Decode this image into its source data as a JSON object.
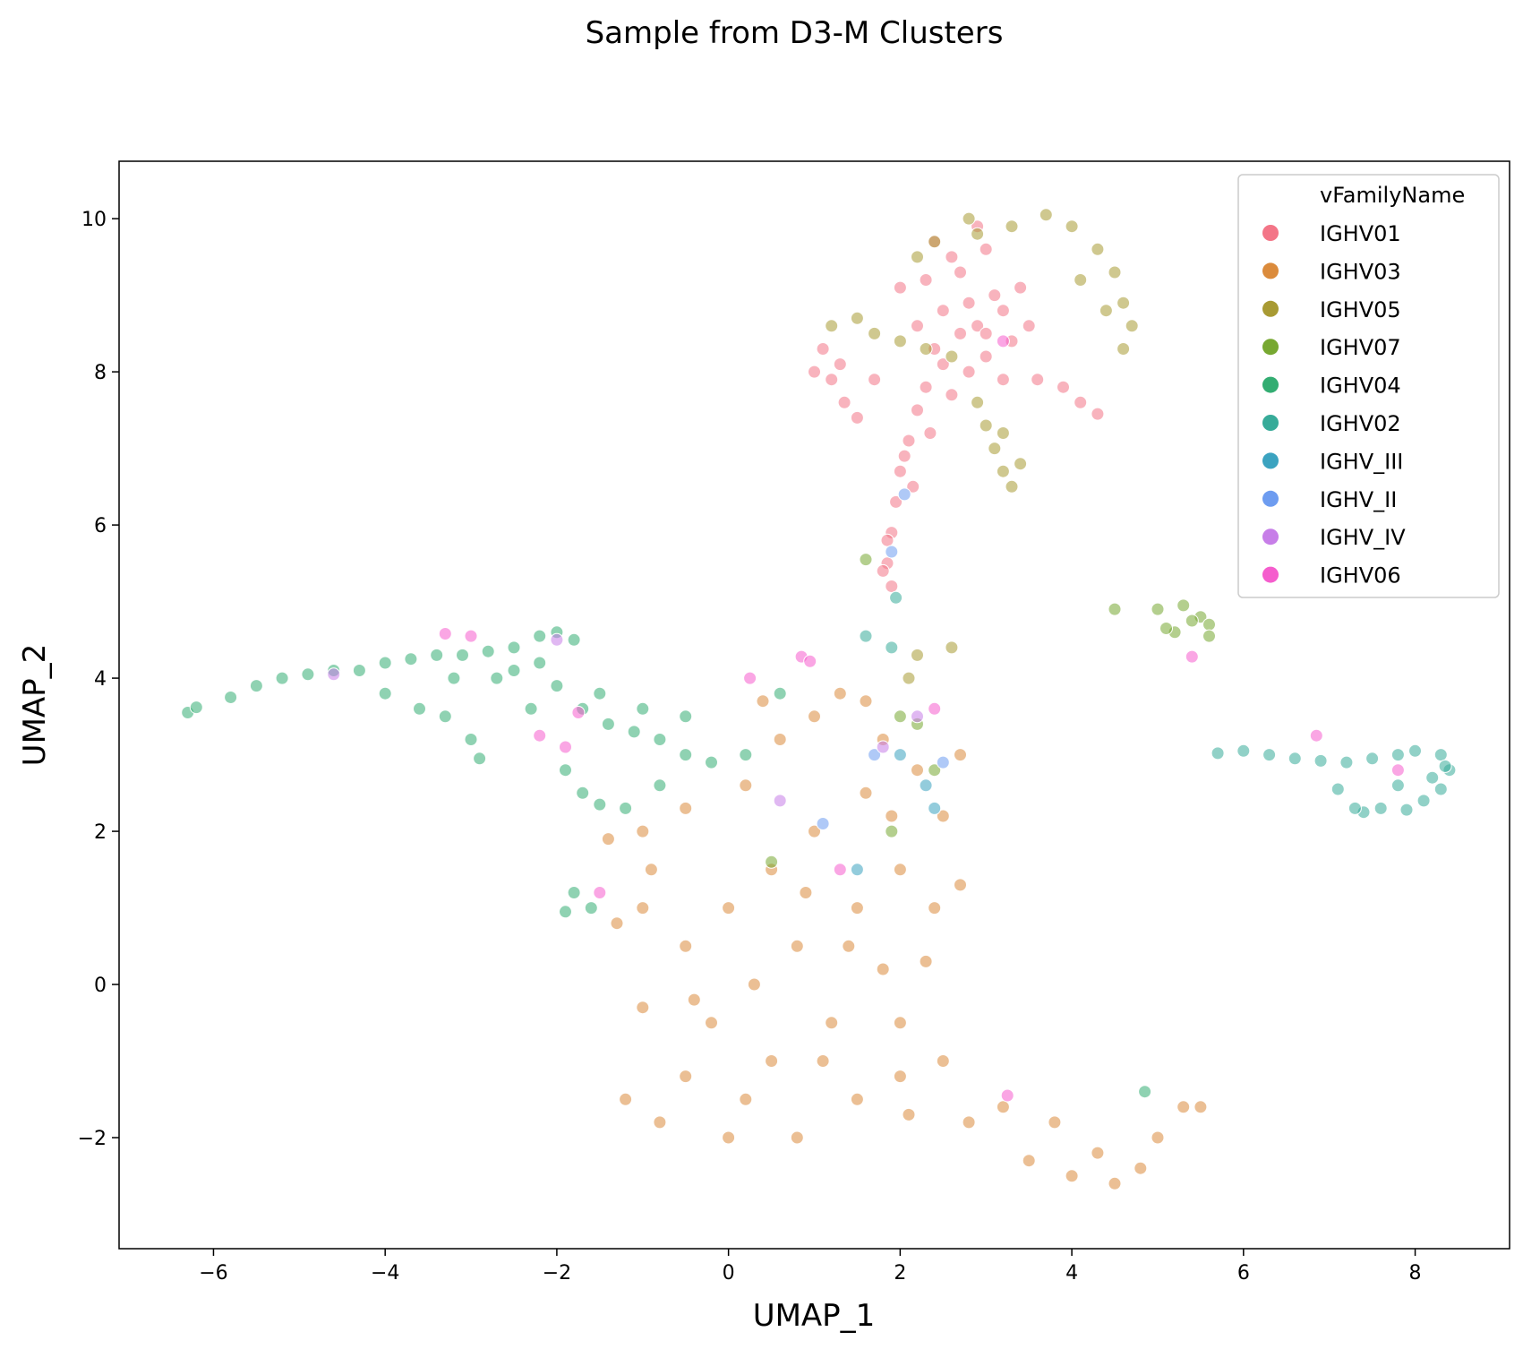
{
  "chart_data": {
    "type": "scatter",
    "title": "Sample from D3-M Clusters",
    "xlabel": "UMAP_1",
    "ylabel": "UMAP_2",
    "xlim": [
      -7.1,
      9.1
    ],
    "ylim": [
      -3.45,
      10.75
    ],
    "xticks": [
      -6,
      -4,
      -2,
      0,
      2,
      4,
      6,
      8
    ],
    "yticks": [
      -2,
      0,
      2,
      4,
      6,
      8,
      10
    ],
    "grid": false,
    "legend": {
      "title": "vFamilyName",
      "position": "top-right"
    },
    "marker_alpha": 0.55,
    "series": [
      {
        "name": "IGHV01",
        "color": "#f37587",
        "points": [
          [
            2.9,
            8.6
          ],
          [
            3.1,
            9.0
          ],
          [
            2.7,
            9.3
          ],
          [
            3.3,
            8.4
          ],
          [
            2.5,
            8.8
          ],
          [
            3.0,
            8.2
          ],
          [
            3.4,
            9.1
          ],
          [
            2.8,
            8.0
          ],
          [
            3.2,
            7.9
          ],
          [
            3.6,
            7.9
          ],
          [
            3.9,
            7.8
          ],
          [
            4.1,
            7.6
          ],
          [
            4.3,
            7.45
          ],
          [
            3.0,
            9.6
          ],
          [
            2.6,
            9.5
          ],
          [
            2.3,
            9.2
          ],
          [
            2.2,
            8.6
          ],
          [
            2.5,
            8.1
          ],
          [
            2.3,
            7.8
          ],
          [
            2.2,
            7.5
          ],
          [
            2.1,
            7.1
          ],
          [
            2.0,
            6.7
          ],
          [
            1.95,
            6.3
          ],
          [
            1.9,
            5.9
          ],
          [
            1.85,
            5.5
          ],
          [
            1.9,
            5.2
          ],
          [
            1.8,
            5.4
          ],
          [
            2.05,
            6.9
          ],
          [
            2.4,
            8.3
          ],
          [
            2.6,
            7.7
          ],
          [
            1.1,
            8.3
          ],
          [
            1.2,
            7.9
          ],
          [
            1.35,
            7.6
          ],
          [
            1.5,
            7.4
          ],
          [
            1.3,
            8.1
          ],
          [
            1.7,
            7.9
          ],
          [
            3.5,
            8.6
          ],
          [
            2.9,
            9.9
          ],
          [
            2.0,
            9.1
          ],
          [
            1.85,
            5.8
          ],
          [
            2.35,
            7.2
          ],
          [
            2.15,
            6.5
          ],
          [
            2.8,
            8.9
          ],
          [
            3.2,
            8.8
          ],
          [
            2.4,
            9.7
          ],
          [
            1.0,
            8.0
          ],
          [
            2.7,
            8.5
          ],
          [
            3.0,
            8.5
          ]
        ]
      },
      {
        "name": "IGHV03",
        "color": "#db8b3c",
        "points": [
          [
            0.5,
            1.5
          ],
          [
            1.0,
            2.0
          ],
          [
            1.5,
            1.0
          ],
          [
            2.0,
            1.5
          ],
          [
            0.8,
            0.5
          ],
          [
            1.2,
            -0.5
          ],
          [
            0.5,
            -1.0
          ],
          [
            -0.5,
            -1.2
          ],
          [
            -1.2,
            -1.5
          ],
          [
            0.0,
            -2.0
          ],
          [
            1.5,
            -1.5
          ],
          [
            2.0,
            -0.5
          ],
          [
            2.5,
            -1.0
          ],
          [
            2.8,
            -1.8
          ],
          [
            3.2,
            -1.6
          ],
          [
            3.8,
            -1.8
          ],
          [
            4.0,
            -2.5
          ],
          [
            4.5,
            -2.6
          ],
          [
            5.0,
            -2.0
          ],
          [
            5.3,
            -1.6
          ],
          [
            -0.5,
            0.5
          ],
          [
            -1.0,
            1.0
          ],
          [
            -1.3,
            0.8
          ],
          [
            -1.0,
            2.0
          ],
          [
            -0.5,
            2.3
          ],
          [
            0.2,
            2.6
          ],
          [
            0.6,
            3.2
          ],
          [
            1.0,
            3.5
          ],
          [
            1.3,
            3.8
          ],
          [
            1.8,
            3.2
          ],
          [
            2.2,
            2.8
          ],
          [
            2.5,
            2.2
          ],
          [
            2.4,
            1.0
          ],
          [
            2.7,
            1.3
          ],
          [
            1.8,
            0.2
          ],
          [
            0.3,
            0.0
          ],
          [
            -0.2,
            -0.5
          ],
          [
            -1.0,
            -0.3
          ],
          [
            0.8,
            -2.0
          ],
          [
            1.6,
            2.5
          ],
          [
            2.3,
            0.3
          ],
          [
            0.0,
            1.0
          ],
          [
            1.1,
            -1.0
          ],
          [
            2.1,
            -1.7
          ],
          [
            -0.8,
            -1.8
          ],
          [
            -1.4,
            1.9
          ],
          [
            -0.9,
            1.5
          ],
          [
            0.4,
            3.7
          ],
          [
            1.6,
            3.7
          ],
          [
            2.7,
            3.0
          ],
          [
            4.3,
            -2.2
          ],
          [
            4.8,
            -2.4
          ],
          [
            3.5,
            -2.3
          ],
          [
            5.5,
            -1.6
          ],
          [
            0.2,
            -1.5
          ],
          [
            1.4,
            0.5
          ],
          [
            0.9,
            1.2
          ],
          [
            2.0,
            -1.2
          ],
          [
            -0.4,
            -0.2
          ],
          [
            1.9,
            2.2
          ]
        ]
      },
      {
        "name": "IGHV05",
        "color": "#a89a33",
        "points": [
          [
            2.9,
            9.8
          ],
          [
            3.3,
            9.9
          ],
          [
            3.7,
            10.05
          ],
          [
            4.0,
            9.9
          ],
          [
            4.3,
            9.6
          ],
          [
            4.5,
            9.3
          ],
          [
            4.6,
            8.9
          ],
          [
            4.7,
            8.6
          ],
          [
            4.6,
            8.3
          ],
          [
            4.4,
            8.8
          ],
          [
            2.4,
            9.7
          ],
          [
            2.2,
            9.5
          ],
          [
            1.2,
            8.6
          ],
          [
            1.5,
            8.7
          ],
          [
            1.7,
            8.5
          ],
          [
            2.0,
            8.4
          ],
          [
            2.3,
            8.3
          ],
          [
            2.6,
            8.2
          ],
          [
            2.9,
            7.6
          ],
          [
            3.0,
            7.3
          ],
          [
            3.1,
            7.0
          ],
          [
            3.2,
            6.7
          ],
          [
            3.3,
            6.5
          ],
          [
            3.4,
            6.8
          ],
          [
            3.2,
            7.2
          ],
          [
            2.8,
            10.0
          ],
          [
            4.1,
            9.2
          ],
          [
            2.1,
            4.0
          ],
          [
            2.2,
            4.3
          ],
          [
            2.6,
            4.4
          ]
        ]
      },
      {
        "name": "IGHV07",
        "color": "#77a831",
        "points": [
          [
            5.0,
            4.9
          ],
          [
            5.3,
            4.95
          ],
          [
            5.5,
            4.8
          ],
          [
            5.6,
            4.7
          ],
          [
            5.2,
            4.6
          ],
          [
            5.4,
            4.75
          ],
          [
            5.1,
            4.65
          ],
          [
            4.5,
            4.9
          ],
          [
            5.6,
            4.55
          ],
          [
            1.6,
            5.55
          ],
          [
            2.2,
            3.4
          ],
          [
            2.4,
            2.8
          ],
          [
            1.9,
            2.0
          ],
          [
            0.5,
            1.6
          ],
          [
            2.0,
            3.5
          ]
        ]
      },
      {
        "name": "IGHV04",
        "color": "#33ad72",
        "points": [
          [
            -6.3,
            3.55
          ],
          [
            -6.2,
            3.62
          ],
          [
            -5.8,
            3.75
          ],
          [
            -5.5,
            3.9
          ],
          [
            -5.2,
            4.0
          ],
          [
            -4.9,
            4.05
          ],
          [
            -4.6,
            4.1
          ],
          [
            -4.3,
            4.1
          ],
          [
            -4.0,
            4.2
          ],
          [
            -3.7,
            4.25
          ],
          [
            -3.4,
            4.3
          ],
          [
            -3.1,
            4.3
          ],
          [
            -2.8,
            4.35
          ],
          [
            -2.5,
            4.4
          ],
          [
            -2.2,
            4.55
          ],
          [
            -2.0,
            4.6
          ],
          [
            -1.8,
            4.5
          ],
          [
            -3.0,
            3.2
          ],
          [
            -2.9,
            2.95
          ],
          [
            -3.3,
            3.5
          ],
          [
            -3.6,
            3.6
          ],
          [
            -4.0,
            3.8
          ],
          [
            -2.0,
            3.9
          ],
          [
            -1.7,
            3.6
          ],
          [
            -1.4,
            3.4
          ],
          [
            -1.1,
            3.3
          ],
          [
            -0.8,
            3.2
          ],
          [
            -0.5,
            3.0
          ],
          [
            -0.2,
            2.9
          ],
          [
            0.2,
            3.0
          ],
          [
            -1.9,
            2.8
          ],
          [
            -1.7,
            2.5
          ],
          [
            -1.5,
            2.35
          ],
          [
            -1.2,
            2.3
          ],
          [
            -0.8,
            2.6
          ],
          [
            -1.8,
            1.2
          ],
          [
            -1.6,
            1.0
          ],
          [
            -1.9,
            0.95
          ],
          [
            -2.5,
            4.1
          ],
          [
            -2.7,
            4.0
          ],
          [
            -3.2,
            4.0
          ],
          [
            -2.3,
            3.6
          ],
          [
            -1.0,
            3.6
          ],
          [
            0.6,
            3.8
          ],
          [
            4.85,
            -1.4
          ],
          [
            -0.5,
            3.5
          ],
          [
            -2.2,
            4.2
          ],
          [
            -1.5,
            3.8
          ]
        ]
      },
      {
        "name": "IGHV02",
        "color": "#37ab99",
        "points": [
          [
            5.7,
            3.02
          ],
          [
            6.0,
            3.05
          ],
          [
            6.3,
            3.0
          ],
          [
            6.6,
            2.95
          ],
          [
            6.9,
            2.92
          ],
          [
            7.2,
            2.9
          ],
          [
            7.5,
            2.95
          ],
          [
            7.8,
            3.0
          ],
          [
            8.0,
            3.05
          ],
          [
            8.3,
            3.0
          ],
          [
            8.4,
            2.8
          ],
          [
            8.3,
            2.55
          ],
          [
            8.1,
            2.4
          ],
          [
            7.9,
            2.28
          ],
          [
            7.6,
            2.3
          ],
          [
            7.4,
            2.25
          ],
          [
            7.1,
            2.55
          ],
          [
            7.8,
            2.6
          ],
          [
            8.2,
            2.7
          ],
          [
            8.35,
            2.85
          ],
          [
            1.6,
            4.55
          ],
          [
            1.95,
            5.05
          ],
          [
            1.9,
            4.4
          ],
          [
            7.3,
            2.3
          ]
        ]
      },
      {
        "name": "IGHV_III",
        "color": "#3ba3c0",
        "points": [
          [
            2.0,
            3.0
          ],
          [
            2.3,
            2.6
          ],
          [
            1.5,
            1.5
          ],
          [
            2.4,
            2.3
          ]
        ]
      },
      {
        "name": "IGHV_II",
        "color": "#6d9cf0",
        "points": [
          [
            1.9,
            5.65
          ],
          [
            2.05,
            6.4
          ],
          [
            1.7,
            3.0
          ],
          [
            1.1,
            2.1
          ],
          [
            2.5,
            2.9
          ]
        ]
      },
      {
        "name": "IGHV_IV",
        "color": "#c77ee8",
        "points": [
          [
            -4.6,
            4.05
          ],
          [
            -2.0,
            4.5
          ],
          [
            1.8,
            3.1
          ],
          [
            0.6,
            2.4
          ],
          [
            2.2,
            3.5
          ]
        ]
      },
      {
        "name": "IGHV06",
        "color": "#f55dcd",
        "points": [
          [
            0.85,
            4.28
          ],
          [
            0.95,
            4.22
          ],
          [
            0.25,
            4.0
          ],
          [
            -3.3,
            4.58
          ],
          [
            -2.2,
            3.25
          ],
          [
            -1.9,
            3.1
          ],
          [
            -1.75,
            3.55
          ],
          [
            5.4,
            4.28
          ],
          [
            6.85,
            3.25
          ],
          [
            7.8,
            2.8
          ],
          [
            3.2,
            8.4
          ],
          [
            1.3,
            1.5
          ],
          [
            -1.5,
            1.2
          ],
          [
            2.4,
            3.6
          ],
          [
            -3.0,
            4.55
          ],
          [
            3.25,
            -1.45
          ]
        ]
      }
    ]
  }
}
